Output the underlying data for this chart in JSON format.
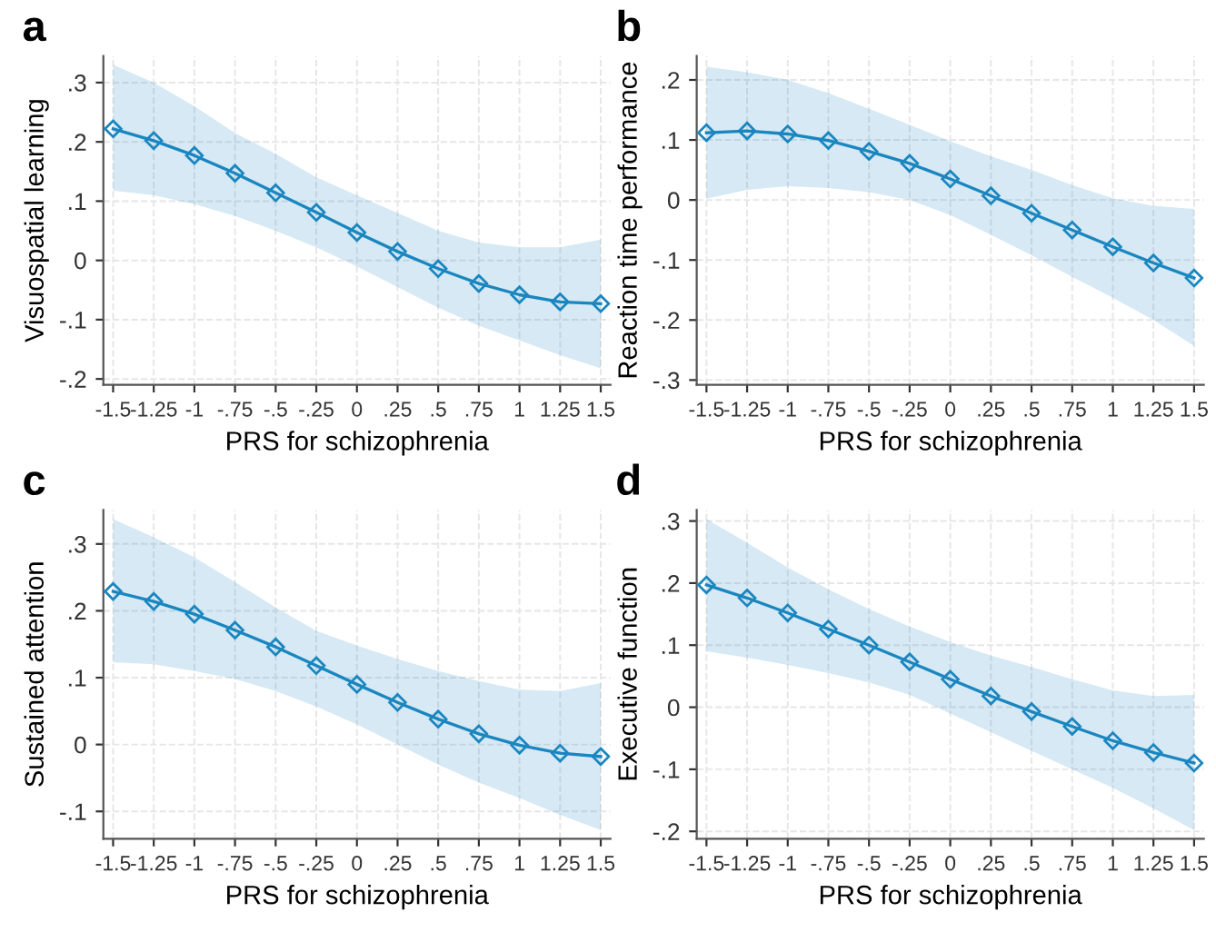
{
  "chart_data": [
    {
      "type": "line",
      "title": "a",
      "xlabel": "PRS for schizophrenia",
      "ylabel": "Visuospatial learning",
      "x": [
        -1.5,
        -1.25,
        -1,
        -0.75,
        -0.5,
        -0.25,
        0,
        0.25,
        0.5,
        0.75,
        1,
        1.25,
        1.5
      ],
      "series": [
        {
          "color": "#1a86c0",
          "values": [
            0.222,
            0.202,
            0.177,
            0.147,
            0.114,
            0.081,
            0.047,
            0.015,
            -0.014,
            -0.039,
            -0.058,
            -0.07,
            -0.073
          ],
          "lower": [
            0.118,
            0.11,
            0.095,
            0.075,
            0.05,
            0.022,
            -0.01,
            -0.045,
            -0.08,
            -0.11,
            -0.135,
            -0.16,
            -0.182
          ],
          "upper": [
            0.33,
            0.3,
            0.26,
            0.215,
            0.18,
            0.14,
            0.11,
            0.08,
            0.05,
            0.03,
            0.022,
            0.022,
            0.035
          ]
        }
      ],
      "xlim": [
        -1.56,
        1.56
      ],
      "xticks": [
        {
          "value": -1.5,
          "label": "-1.5"
        },
        {
          "value": -1.25,
          "label": "-1.25"
        },
        {
          "value": -1,
          "label": "-1"
        },
        {
          "value": -0.75,
          "label": "-.75"
        },
        {
          "value": -0.5,
          "label": "-.5"
        },
        {
          "value": -0.25,
          "label": "-.25"
        },
        0,
        {
          "value": 0.25,
          "label": ".25"
        },
        {
          "value": 0.5,
          "label": ".5"
        },
        {
          "value": 0.75,
          "label": ".75"
        },
        1,
        {
          "value": 1.25,
          "label": "1.25"
        },
        {
          "value": 1.5,
          "label": "1.5"
        }
      ],
      "ylim": [
        -0.21,
        0.345
      ],
      "yticks": [
        {
          "value": -0.2,
          "label": "-.2"
        },
        {
          "value": -0.1,
          "label": "-.1"
        },
        0,
        {
          "value": 0.1,
          "label": ".1"
        },
        {
          "value": 0.2,
          "label": ".2"
        },
        {
          "value": 0.3,
          "label": ".3"
        }
      ],
      "grid": true,
      "marker": "diamond",
      "line_style": "solid",
      "legend": false
    },
    {
      "type": "line",
      "title": "b",
      "xlabel": "PRS for schizophrenia",
      "ylabel": "Reaction time performance",
      "x": [
        -1.5,
        -1.25,
        -1,
        -0.75,
        -0.5,
        -0.25,
        0,
        0.25,
        0.5,
        0.75,
        1,
        1.25,
        1.5
      ],
      "series": [
        {
          "color": "#1a86c0",
          "values": [
            0.112,
            0.115,
            0.11,
            0.099,
            0.081,
            0.061,
            0.035,
            0.007,
            -0.022,
            -0.05,
            -0.078,
            -0.105,
            -0.13
          ],
          "lower": [
            0.002,
            0.017,
            0.023,
            0.02,
            0.013,
            0.0,
            -0.025,
            -0.058,
            -0.092,
            -0.128,
            -0.163,
            -0.2,
            -0.243
          ],
          "upper": [
            0.222,
            0.213,
            0.2,
            0.178,
            0.152,
            0.125,
            0.098,
            0.073,
            0.05,
            0.025,
            0.003,
            -0.01,
            -0.015
          ]
        }
      ],
      "xlim": [
        -1.56,
        1.56
      ],
      "xticks": [
        {
          "value": -1.5,
          "label": "-1.5"
        },
        {
          "value": -1.25,
          "label": "-1.25"
        },
        {
          "value": -1,
          "label": "-1"
        },
        {
          "value": -0.75,
          "label": "-.75"
        },
        {
          "value": -0.5,
          "label": "-.5"
        },
        {
          "value": -0.25,
          "label": "-.25"
        },
        0,
        {
          "value": 0.25,
          "label": ".25"
        },
        {
          "value": 0.5,
          "label": ".5"
        },
        {
          "value": 0.75,
          "label": ".75"
        },
        1,
        {
          "value": 1.25,
          "label": "1.25"
        },
        {
          "value": 1.5,
          "label": "1.5"
        }
      ],
      "ylim": [
        -0.308,
        0.24
      ],
      "yticks": [
        {
          "value": -0.3,
          "label": "-.3"
        },
        {
          "value": -0.2,
          "label": "-.2"
        },
        {
          "value": -0.1,
          "label": "-.1"
        },
        0,
        {
          "value": 0.1,
          "label": ".1"
        },
        {
          "value": 0.2,
          "label": ".2"
        }
      ],
      "grid": true,
      "marker": "diamond",
      "line_style": "solid",
      "legend": false
    },
    {
      "type": "line",
      "title": "c",
      "xlabel": "PRS for schizophrenia",
      "ylabel": "Sustained attention",
      "x": [
        -1.5,
        -1.25,
        -1,
        -0.75,
        -0.5,
        -0.25,
        0,
        0.25,
        0.5,
        0.75,
        1,
        1.25,
        1.5
      ],
      "series": [
        {
          "color": "#1a86c0",
          "values": [
            0.229,
            0.214,
            0.195,
            0.171,
            0.146,
            0.118,
            0.09,
            0.063,
            0.038,
            0.016,
            -0.001,
            -0.013,
            -0.018
          ],
          "lower": [
            0.123,
            0.12,
            0.11,
            0.098,
            0.08,
            0.057,
            0.03,
            0.0,
            -0.03,
            -0.057,
            -0.08,
            -0.105,
            -0.128
          ],
          "upper": [
            0.337,
            0.31,
            0.28,
            0.243,
            0.205,
            0.17,
            0.148,
            0.128,
            0.11,
            0.095,
            0.082,
            0.08,
            0.092
          ]
        }
      ],
      "xlim": [
        -1.56,
        1.56
      ],
      "xticks": [
        {
          "value": -1.5,
          "label": "-1.5"
        },
        {
          "value": -1.25,
          "label": "-1.25"
        },
        {
          "value": -1,
          "label": "-1"
        },
        {
          "value": -0.75,
          "label": "-.75"
        },
        {
          "value": -0.5,
          "label": "-.5"
        },
        {
          "value": -0.25,
          "label": "-.25"
        },
        0,
        {
          "value": 0.25,
          "label": ".25"
        },
        {
          "value": 0.5,
          "label": ".5"
        },
        {
          "value": 0.75,
          "label": ".75"
        },
        1,
        {
          "value": 1.25,
          "label": "1.25"
        },
        {
          "value": 1.5,
          "label": "1.5"
        }
      ],
      "ylim": [
        -0.141,
        0.351
      ],
      "yticks": [
        {
          "value": -0.1,
          "label": "-.1"
        },
        0,
        {
          "value": 0.1,
          "label": ".1"
        },
        {
          "value": 0.2,
          "label": ".2"
        },
        {
          "value": 0.3,
          "label": ".3"
        }
      ],
      "grid": true,
      "marker": "diamond",
      "line_style": "solid",
      "legend": false
    },
    {
      "type": "line",
      "title": "d",
      "xlabel": "PRS for schizophrenia",
      "ylabel": "Executive function",
      "x": [
        -1.5,
        -1.25,
        -1,
        -0.75,
        -0.5,
        -0.25,
        0,
        0.25,
        0.5,
        0.75,
        1,
        1.25,
        1.5
      ],
      "series": [
        {
          "color": "#1a86c0",
          "values": [
            0.197,
            0.176,
            0.152,
            0.126,
            0.1,
            0.073,
            0.045,
            0.018,
            -0.007,
            -0.031,
            -0.054,
            -0.073,
            -0.09
          ],
          "lower": [
            0.09,
            0.08,
            0.068,
            0.055,
            0.04,
            0.02,
            -0.01,
            -0.04,
            -0.07,
            -0.1,
            -0.13,
            -0.163,
            -0.198
          ],
          "upper": [
            0.303,
            0.265,
            0.225,
            0.19,
            0.158,
            0.13,
            0.105,
            0.083,
            0.065,
            0.045,
            0.027,
            0.018,
            0.02
          ]
        }
      ],
      "xlim": [
        -1.56,
        1.56
      ],
      "xticks": [
        {
          "value": -1.5,
          "label": "-1.5"
        },
        {
          "value": -1.25,
          "label": "-1.25"
        },
        {
          "value": -1,
          "label": "-1"
        },
        {
          "value": -0.75,
          "label": "-.75"
        },
        {
          "value": -0.5,
          "label": "-.5"
        },
        {
          "value": -0.25,
          "label": "-.25"
        },
        0,
        {
          "value": 0.25,
          "label": ".25"
        },
        {
          "value": 0.5,
          "label": ".5"
        },
        {
          "value": 0.75,
          "label": ".75"
        },
        1,
        {
          "value": 1.25,
          "label": "1.25"
        },
        {
          "value": 1.5,
          "label": "1.5"
        }
      ],
      "ylim": [
        -0.212,
        0.318
      ],
      "yticks": [
        {
          "value": -0.2,
          "label": "-.2"
        },
        {
          "value": -0.1,
          "label": "-.1"
        },
        0,
        {
          "value": 0.1,
          "label": ".1"
        },
        {
          "value": 0.2,
          "label": ".2"
        },
        {
          "value": 0.3,
          "label": ".3"
        }
      ],
      "grid": true,
      "marker": "diamond",
      "line_style": "solid",
      "legend": false
    }
  ]
}
